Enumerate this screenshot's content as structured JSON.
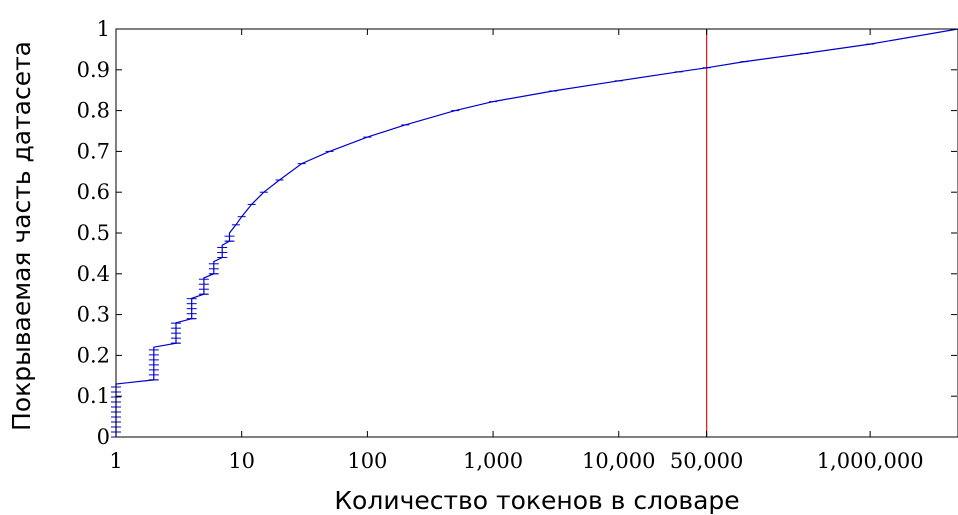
{
  "chart_data": {
    "type": "line",
    "title": "",
    "xlabel": "Количество токенов в словаре",
    "ylabel": "Покрываемая часть датасета",
    "x_scale": "log",
    "xlim": [
      1,
      5000000
    ],
    "ylim": [
      0,
      1
    ],
    "grid": false,
    "legend": "none",
    "x_ticks": [
      {
        "value": 1,
        "label": "1"
      },
      {
        "value": 10,
        "label": "10"
      },
      {
        "value": 100,
        "label": "100"
      },
      {
        "value": 1000,
        "label": "1,000"
      },
      {
        "value": 10000,
        "label": "10,000"
      },
      {
        "value": 50000,
        "label": "50,000"
      },
      {
        "value": 1000000,
        "label": "1,000,000"
      }
    ],
    "y_ticks": [
      {
        "value": 0,
        "label": "0"
      },
      {
        "value": 0.1,
        "label": "0.1"
      },
      {
        "value": 0.2,
        "label": "0.2"
      },
      {
        "value": 0.3,
        "label": "0.3"
      },
      {
        "value": 0.4,
        "label": "0.4"
      },
      {
        "value": 0.5,
        "label": "0.5"
      },
      {
        "value": 0.6,
        "label": "0.6"
      },
      {
        "value": 0.7,
        "label": "0.7"
      },
      {
        "value": 0.8,
        "label": "0.8"
      },
      {
        "value": 0.9,
        "label": "0.9"
      },
      {
        "value": 1,
        "label": "1"
      }
    ],
    "series": [
      {
        "color": "#0000cc",
        "x": [
          1,
          1,
          2,
          2,
          3,
          3,
          4,
          4,
          5,
          5,
          6,
          6,
          7,
          7,
          8,
          8,
          9,
          10,
          12,
          15,
          20,
          30,
          50,
          100,
          200,
          500,
          1000,
          3000,
          10000,
          30000,
          50000,
          100000,
          300000,
          1000000,
          5000000
        ],
        "y": [
          0,
          0.13,
          0.14,
          0.22,
          0.23,
          0.28,
          0.29,
          0.34,
          0.35,
          0.39,
          0.4,
          0.43,
          0.44,
          0.47,
          0.48,
          0.5,
          0.52,
          0.54,
          0.57,
          0.6,
          0.63,
          0.67,
          0.7,
          0.735,
          0.765,
          0.8,
          0.822,
          0.848,
          0.873,
          0.895,
          0.905,
          0.92,
          0.94,
          0.963,
          1.0
        ]
      }
    ],
    "reference_line": {
      "x": 50000,
      "color": "#dd2222"
    }
  }
}
